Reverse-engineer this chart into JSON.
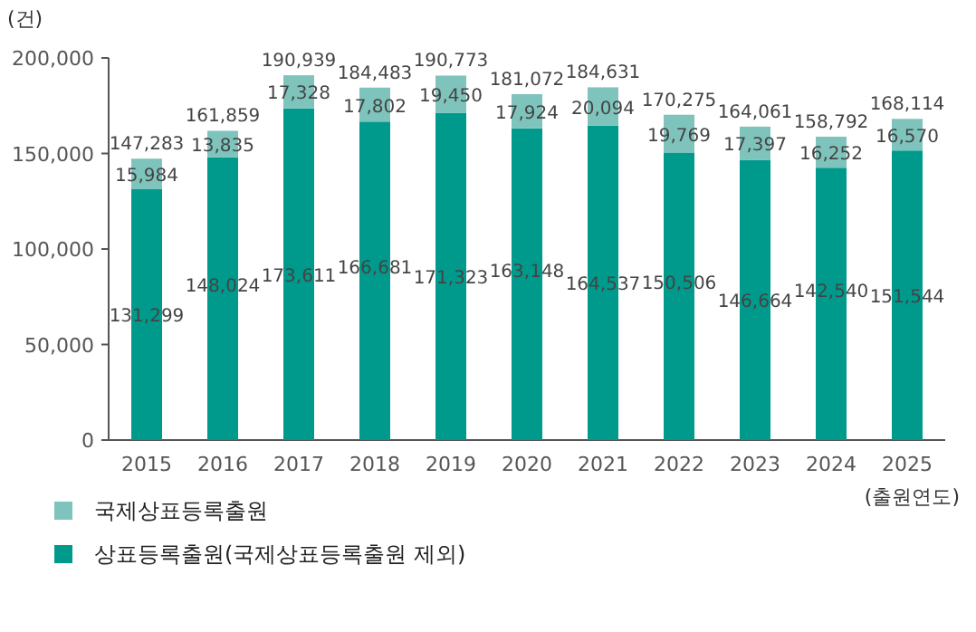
{
  "chart_data": {
    "type": "bar",
    "stacked": true,
    "ylabel": "(건)",
    "xlabel": "(출원연도)",
    "legend": "bottom left",
    "categories": [
      "2015",
      "2016",
      "2017",
      "2018",
      "2019",
      "2020",
      "2021",
      "2022",
      "2023",
      "2024",
      "2025"
    ],
    "series": [
      {
        "name": "상표등록출원(국제상표등록출원 제외)",
        "color": "#009a8c",
        "values": [
          131299,
          148024,
          173611,
          166681,
          171323,
          163148,
          164537,
          150506,
          146664,
          142540,
          151544
        ],
        "value_labels": [
          "131,299",
          "148,024",
          "173,611",
          "166,681",
          "171,323",
          "163,148",
          "164,537",
          "150,506",
          "146,664",
          "142,540",
          "151,544"
        ]
      },
      {
        "name": "국제상표등록출원",
        "color": "#7fc4bc",
        "values": [
          15984,
          13835,
          17328,
          17802,
          19450,
          17924,
          20094,
          19769,
          17397,
          16252,
          16570
        ],
        "value_labels": [
          "15,984",
          "13,835",
          "17,328",
          "17,802",
          "19,450",
          "17,924",
          "20,094",
          "19,769",
          "17,397",
          "16,252",
          "16,570"
        ]
      }
    ],
    "totals": [
      "147,283",
      "161,859",
      "190,939",
      "184,483",
      "190,773",
      "181,072",
      "184,631",
      "170,275",
      "164,061",
      "158,792",
      "168,114"
    ],
    "ylim": [
      0,
      200000
    ],
    "yticks": [
      0,
      {
        "value": 50000,
        "label": "50,000"
      },
      {
        "value": 100000,
        "label": "100,000"
      },
      {
        "value": 150000,
        "label": "150,000"
      },
      {
        "value": 200000,
        "label": "200,000"
      }
    ]
  }
}
